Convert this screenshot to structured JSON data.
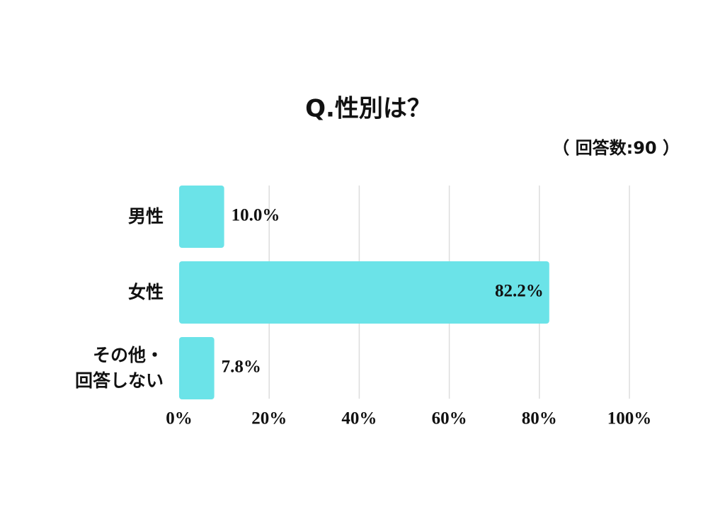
{
  "chart_data": {
    "type": "barh",
    "title": "Q.性別は？",
    "subtitle": "（ 回答数:90 ）",
    "categories": [
      "男性",
      "女性",
      "その他・\n回答しない"
    ],
    "values": [
      10.0,
      82.2,
      7.8
    ],
    "value_labels": [
      "10.0%",
      "82.2%",
      "7.8%"
    ],
    "color": "#6be3e8",
    "xlim": [
      0,
      100
    ],
    "xticks": [
      {
        "value": 0,
        "label": "0%"
      },
      {
        "value": 20,
        "label": "20%"
      },
      {
        "value": 40,
        "label": "40%"
      },
      {
        "value": 60,
        "label": "60%"
      },
      {
        "value": 80,
        "label": "80%"
      },
      {
        "value": 100,
        "label": "100%"
      }
    ],
    "grid": true
  }
}
